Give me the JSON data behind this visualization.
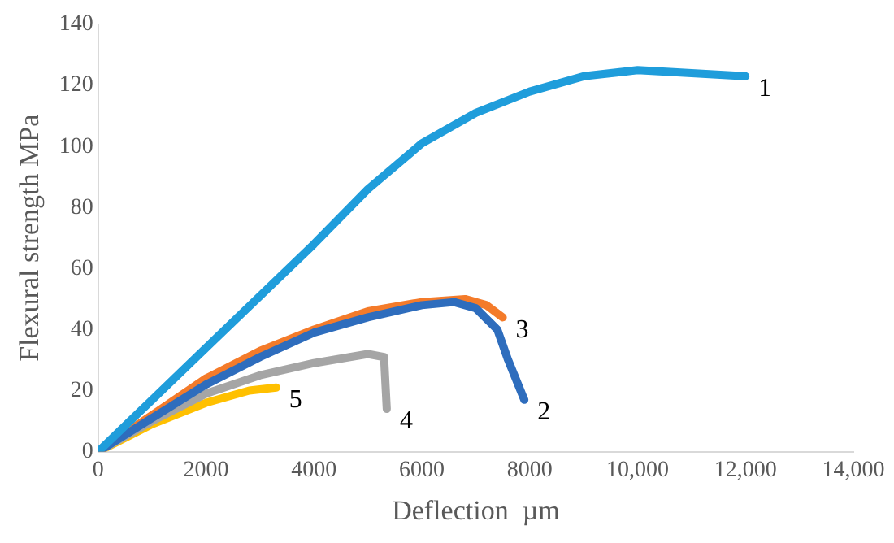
{
  "chart_data": {
    "type": "line",
    "xlabel": "Deflection  µm",
    "ylabel": "Flexural strength MPa",
    "xlim": [
      0,
      14000
    ],
    "xticks": [
      0,
      2000,
      4000,
      6000,
      8000,
      {
        "value": 10000,
        "label": "10,000"
      },
      {
        "value": 12000,
        "label": "12,000"
      },
      {
        "value": 14000,
        "label": "14,000"
      }
    ],
    "ylim": [
      0,
      140
    ],
    "yticks": [
      0,
      20,
      40,
      60,
      80,
      100,
      120,
      140
    ],
    "grid": false,
    "legend": false,
    "marker": "none",
    "line_style": "solid",
    "series": [
      {
        "name": "1",
        "color": "#1f9ddb",
        "x": [
          0,
          1000,
          2000,
          3000,
          4000,
          5000,
          6000,
          7000,
          8000,
          9000,
          10000,
          11000,
          12000
        ],
        "values": [
          0,
          17,
          34,
          51,
          68,
          86,
          101,
          111,
          118,
          123,
          125,
          124,
          123
        ]
      },
      {
        "name": "2",
        "color": "#2e6dbd",
        "x": [
          0,
          1000,
          2000,
          3000,
          4000,
          5000,
          6000,
          6600,
          7000,
          7400,
          7600,
          7900
        ],
        "values": [
          0,
          11,
          22,
          31,
          39,
          44,
          48,
          49,
          47,
          40,
          30,
          17
        ]
      },
      {
        "name": "3",
        "color": "#f47b2a",
        "x": [
          0,
          1000,
          2000,
          3000,
          4000,
          5000,
          6000,
          6800,
          7200,
          7500
        ],
        "values": [
          0,
          12,
          24,
          33,
          40,
          46,
          49,
          50,
          48,
          44
        ]
      },
      {
        "name": "4",
        "color": "#a5a5a5",
        "x": [
          0,
          1000,
          2000,
          3000,
          4000,
          5000,
          5300,
          5350
        ],
        "values": [
          0,
          10,
          19,
          25,
          29,
          32,
          31,
          14
        ]
      },
      {
        "name": "5",
        "color": "#ffc000",
        "x": [
          0,
          1000,
          2000,
          2800,
          3300
        ],
        "values": [
          0,
          9,
          16,
          20,
          21
        ]
      }
    ]
  }
}
